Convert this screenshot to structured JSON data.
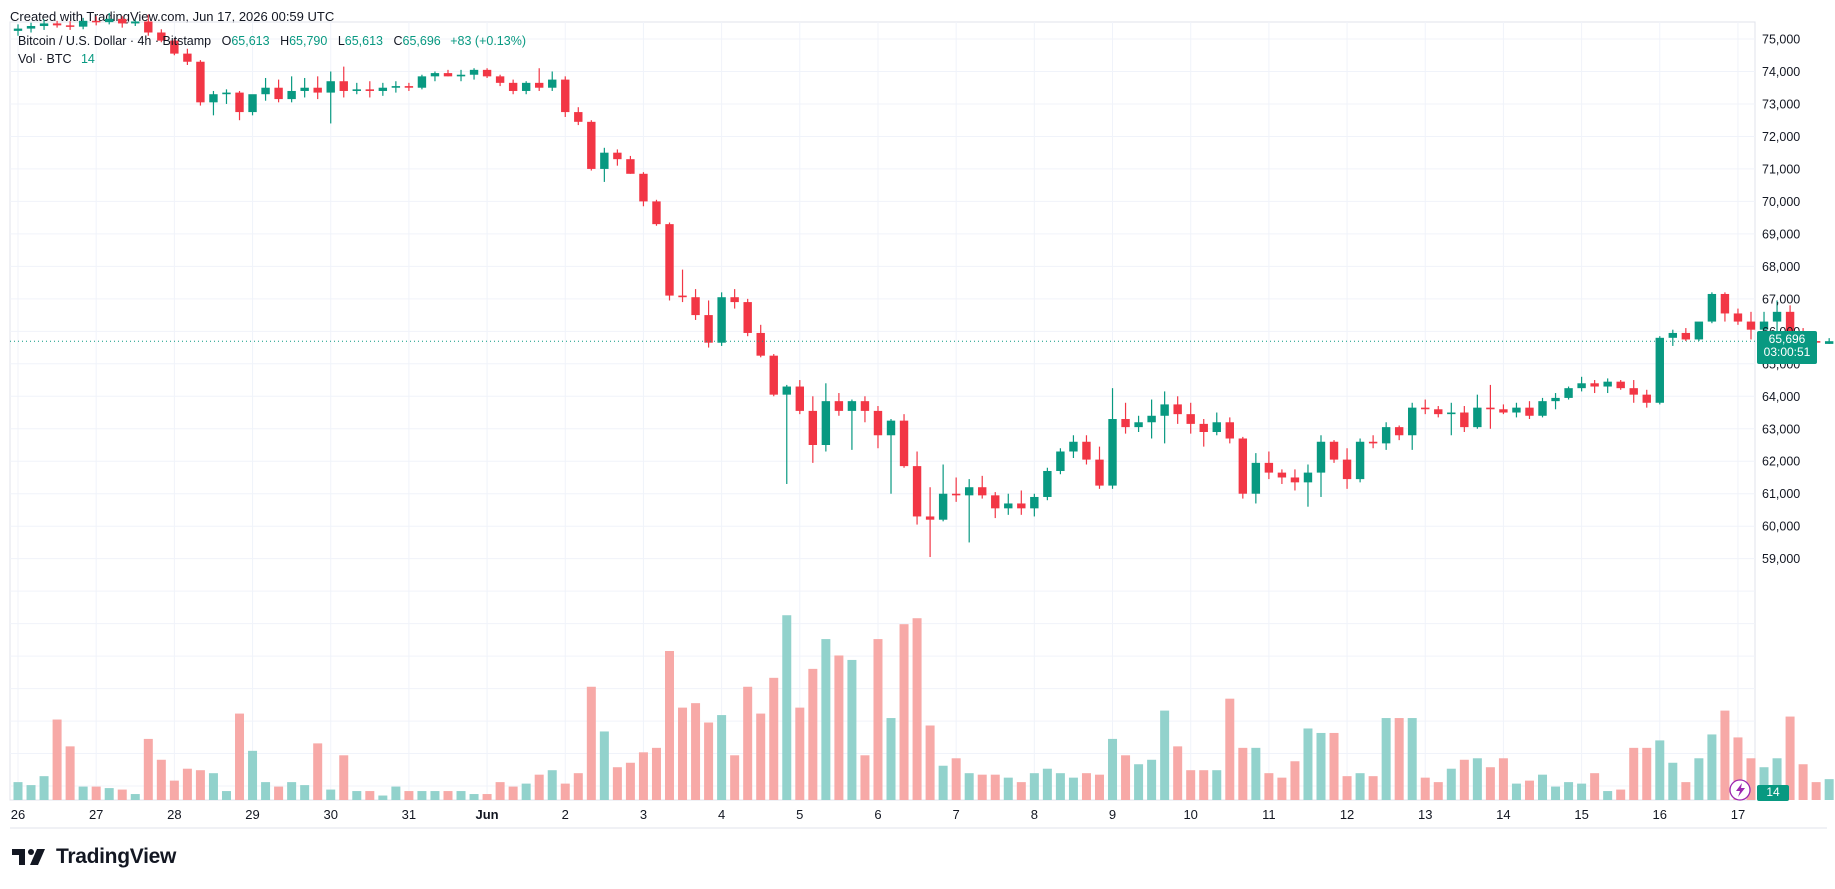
{
  "header": {
    "created_text": "Created with TradingView.com, Jun 17, 2026 00:59 UTC"
  },
  "legend": {
    "symbol": "Bitcoin / U.S. Dollar · 4h · Bitstamp",
    "o_label": "O",
    "o_value": "65,613",
    "h_label": "H",
    "h_value": "65,790",
    "l_label": "L",
    "l_value": "65,613",
    "c_label": "C",
    "c_value": "65,696",
    "change": "+83 (+0.13%)",
    "vol_label": "Vol · BTC",
    "vol_value": "14"
  },
  "price_tag": {
    "price": "65,696",
    "countdown": "03:00:51"
  },
  "volume_tag": "14",
  "brand": "TradingView",
  "colors": {
    "up": "#089981",
    "down": "#f23645",
    "up_vol": "#92d2cc",
    "down_vol": "#f7a9a7",
    "grid": "#f0f3fa",
    "text": "#131722"
  },
  "chart_data": {
    "type": "candlestick",
    "title": "Bitcoin / U.S. Dollar · 4h · Bitstamp",
    "interval": "4h",
    "y_axis": {
      "side": "right",
      "range": [
        58500,
        75600
      ],
      "ticks": [
        59000,
        60000,
        61000,
        62000,
        63000,
        64000,
        65000,
        66000,
        67000,
        68000,
        69000,
        70000,
        71000,
        72000,
        73000,
        74000,
        75000
      ],
      "tick_labels": [
        "59,000",
        "60,000",
        "61,000",
        "62,000",
        "63,000",
        "64,000",
        "65,000",
        "66,000",
        "67,000",
        "68,000",
        "69,000",
        "70,000",
        "71,000",
        "72,000",
        "73,000",
        "74,000",
        "75,000"
      ]
    },
    "x_axis": {
      "labels": [
        "26",
        "27",
        "28",
        "29",
        "30",
        "31",
        "Jun",
        "2",
        "3",
        "4",
        "5",
        "6",
        "7",
        "8",
        "9",
        "10",
        "11",
        "12",
        "13",
        "14",
        "15",
        "16",
        "17"
      ],
      "label_bar_index": [
        0,
        6,
        12,
        18,
        24,
        30,
        36,
        42,
        48,
        54,
        60,
        66,
        72,
        78,
        84,
        90,
        96,
        102,
        108,
        114,
        120,
        126,
        132
      ]
    },
    "last_price": 65696,
    "grid": true,
    "volume_overlay": true,
    "candles": [
      {
        "o": 75250,
        "h": 75450,
        "l": 75100,
        "c": 75320,
        "v": 12
      },
      {
        "o": 75320,
        "h": 75500,
        "l": 75200,
        "c": 75400,
        "v": 10
      },
      {
        "o": 75400,
        "h": 75600,
        "l": 75280,
        "c": 75480,
        "v": 16
      },
      {
        "o": 75480,
        "h": 75560,
        "l": 75350,
        "c": 75420,
        "v": 54
      },
      {
        "o": 75420,
        "h": 75550,
        "l": 75280,
        "c": 75380,
        "v": 36
      },
      {
        "o": 75380,
        "h": 75650,
        "l": 75300,
        "c": 75560,
        "v": 9
      },
      {
        "o": 75560,
        "h": 75700,
        "l": 75420,
        "c": 75520,
        "v": 9
      },
      {
        "o": 75520,
        "h": 75800,
        "l": 75450,
        "c": 75620,
        "v": 8
      },
      {
        "o": 75620,
        "h": 75700,
        "l": 75350,
        "c": 75480,
        "v": 7
      },
      {
        "o": 75480,
        "h": 75600,
        "l": 75400,
        "c": 75540,
        "v": 4
      },
      {
        "o": 75540,
        "h": 75750,
        "l": 75100,
        "c": 75200,
        "v": 41
      },
      {
        "o": 75200,
        "h": 75300,
        "l": 74900,
        "c": 74950,
        "v": 27
      },
      {
        "o": 74950,
        "h": 75000,
        "l": 74500,
        "c": 74550,
        "v": 13
      },
      {
        "o": 74550,
        "h": 74700,
        "l": 74200,
        "c": 74300,
        "v": 21
      },
      {
        "o": 74300,
        "h": 74350,
        "l": 72950,
        "c": 73050,
        "v": 20
      },
      {
        "o": 73050,
        "h": 73400,
        "l": 72650,
        "c": 73300,
        "v": 18
      },
      {
        "o": 73300,
        "h": 73450,
        "l": 73000,
        "c": 73350,
        "v": 6
      },
      {
        "o": 73350,
        "h": 73400,
        "l": 72500,
        "c": 72750,
        "v": 58
      },
      {
        "o": 72750,
        "h": 73200,
        "l": 72650,
        "c": 73300,
        "v": 33
      },
      {
        "o": 73300,
        "h": 73800,
        "l": 73100,
        "c": 73500,
        "v": 12
      },
      {
        "o": 73500,
        "h": 73750,
        "l": 73050,
        "c": 73150,
        "v": 9
      },
      {
        "o": 73150,
        "h": 73850,
        "l": 73050,
        "c": 73400,
        "v": 12
      },
      {
        "o": 73400,
        "h": 73800,
        "l": 73200,
        "c": 73500,
        "v": 10
      },
      {
        "o": 73500,
        "h": 73850,
        "l": 73150,
        "c": 73350,
        "v": 38
      },
      {
        "o": 73350,
        "h": 74000,
        "l": 72400,
        "c": 73700,
        "v": 7
      },
      {
        "o": 73700,
        "h": 74150,
        "l": 73200,
        "c": 73400,
        "v": 30
      },
      {
        "o": 73400,
        "h": 73650,
        "l": 73300,
        "c": 73450,
        "v": 6
      },
      {
        "o": 73450,
        "h": 73700,
        "l": 73200,
        "c": 73400,
        "v": 6
      },
      {
        "o": 73400,
        "h": 73650,
        "l": 73250,
        "c": 73500,
        "v": 3
      },
      {
        "o": 73500,
        "h": 73700,
        "l": 73350,
        "c": 73550,
        "v": 9
      },
      {
        "o": 73550,
        "h": 73650,
        "l": 73400,
        "c": 73500,
        "v": 6
      },
      {
        "o": 73500,
        "h": 73900,
        "l": 73450,
        "c": 73850,
        "v": 6
      },
      {
        "o": 73850,
        "h": 74000,
        "l": 73700,
        "c": 73950,
        "v": 6
      },
      {
        "o": 73950,
        "h": 74050,
        "l": 73850,
        "c": 73850,
        "v": 6
      },
      {
        "o": 73850,
        "h": 74050,
        "l": 73700,
        "c": 73900,
        "v": 6
      },
      {
        "o": 73900,
        "h": 74100,
        "l": 73750,
        "c": 74050,
        "v": 4
      },
      {
        "o": 74050,
        "h": 74100,
        "l": 73800,
        "c": 73850,
        "v": 4
      },
      {
        "o": 73850,
        "h": 73900,
        "l": 73550,
        "c": 73650,
        "v": 12
      },
      {
        "o": 73650,
        "h": 73750,
        "l": 73300,
        "c": 73400,
        "v": 9
      },
      {
        "o": 73400,
        "h": 73700,
        "l": 73300,
        "c": 73650,
        "v": 11
      },
      {
        "o": 73650,
        "h": 74100,
        "l": 73400,
        "c": 73500,
        "v": 17
      },
      {
        "o": 73500,
        "h": 74000,
        "l": 73400,
        "c": 73750,
        "v": 20
      },
      {
        "o": 73750,
        "h": 73850,
        "l": 72600,
        "c": 72750,
        "v": 11
      },
      {
        "o": 72750,
        "h": 72900,
        "l": 72350,
        "c": 72450,
        "v": 18
      },
      {
        "o": 72450,
        "h": 72500,
        "l": 70950,
        "c": 71000,
        "v": 76
      },
      {
        "o": 71000,
        "h": 71650,
        "l": 70600,
        "c": 71500,
        "v": 46
      },
      {
        "o": 71500,
        "h": 71600,
        "l": 71100,
        "c": 71300,
        "v": 22
      },
      {
        "o": 71300,
        "h": 71400,
        "l": 70850,
        "c": 70850,
        "v": 25
      },
      {
        "o": 70850,
        "h": 70900,
        "l": 69850,
        "c": 70000,
        "v": 32
      },
      {
        "o": 70000,
        "h": 70050,
        "l": 69250,
        "c": 69300,
        "v": 35
      },
      {
        "o": 69300,
        "h": 69350,
        "l": 66950,
        "c": 67100,
        "v": 100
      },
      {
        "o": 67100,
        "h": 67900,
        "l": 66900,
        "c": 67050,
        "v": 62
      },
      {
        "o": 67050,
        "h": 67300,
        "l": 66350,
        "c": 66500,
        "v": 65
      },
      {
        "o": 66500,
        "h": 66950,
        "l": 65500,
        "c": 65650,
        "v": 52
      },
      {
        "o": 65650,
        "h": 67200,
        "l": 65550,
        "c": 67050,
        "v": 57
      },
      {
        "o": 67050,
        "h": 67300,
        "l": 66700,
        "c": 66900,
        "v": 30
      },
      {
        "o": 66900,
        "h": 67000,
        "l": 65850,
        "c": 65950,
        "v": 76
      },
      {
        "o": 65950,
        "h": 66200,
        "l": 65200,
        "c": 65250,
        "v": 58
      },
      {
        "o": 65250,
        "h": 65300,
        "l": 64000,
        "c": 64050,
        "v": 82
      },
      {
        "o": 64050,
        "h": 64350,
        "l": 61300,
        "c": 64300,
        "v": 124
      },
      {
        "o": 64300,
        "h": 64500,
        "l": 63450,
        "c": 63550,
        "v": 62
      },
      {
        "o": 63550,
        "h": 64000,
        "l": 61950,
        "c": 62500,
        "v": 88
      },
      {
        "o": 62500,
        "h": 64400,
        "l": 62300,
        "c": 63850,
        "v": 108
      },
      {
        "o": 63850,
        "h": 64100,
        "l": 63400,
        "c": 63550,
        "v": 97
      },
      {
        "o": 63550,
        "h": 63900,
        "l": 62350,
        "c": 63850,
        "v": 94
      },
      {
        "o": 63850,
        "h": 64000,
        "l": 63200,
        "c": 63550,
        "v": 30
      },
      {
        "o": 63550,
        "h": 63700,
        "l": 62400,
        "c": 62800,
        "v": 108
      },
      {
        "o": 62800,
        "h": 63300,
        "l": 61000,
        "c": 63250,
        "v": 55
      },
      {
        "o": 63250,
        "h": 63450,
        "l": 61800,
        "c": 61850,
        "v": 118
      },
      {
        "o": 61850,
        "h": 62300,
        "l": 60050,
        "c": 60300,
        "v": 122
      },
      {
        "o": 60300,
        "h": 61200,
        "l": 59050,
        "c": 60200,
        "v": 50
      },
      {
        "o": 60200,
        "h": 61900,
        "l": 60150,
        "c": 61000,
        "v": 23
      },
      {
        "o": 61000,
        "h": 61500,
        "l": 60750,
        "c": 60950,
        "v": 28
      },
      {
        "o": 60950,
        "h": 61450,
        "l": 59500,
        "c": 61200,
        "v": 18
      },
      {
        "o": 61200,
        "h": 61550,
        "l": 60850,
        "c": 60950,
        "v": 17
      },
      {
        "o": 60950,
        "h": 61050,
        "l": 60250,
        "c": 60550,
        "v": 17
      },
      {
        "o": 60550,
        "h": 61000,
        "l": 60350,
        "c": 60700,
        "v": 15
      },
      {
        "o": 60700,
        "h": 61100,
        "l": 60350,
        "c": 60550,
        "v": 12
      },
      {
        "o": 60550,
        "h": 61000,
        "l": 60300,
        "c": 60900,
        "v": 18
      },
      {
        "o": 60900,
        "h": 61800,
        "l": 60800,
        "c": 61700,
        "v": 21
      },
      {
        "o": 61700,
        "h": 62400,
        "l": 61600,
        "c": 62300,
        "v": 18
      },
      {
        "o": 62300,
        "h": 62800,
        "l": 62100,
        "c": 62600,
        "v": 15
      },
      {
        "o": 62600,
        "h": 62800,
        "l": 61900,
        "c": 62050,
        "v": 18
      },
      {
        "o": 62050,
        "h": 62450,
        "l": 61150,
        "c": 61250,
        "v": 17
      },
      {
        "o": 61250,
        "h": 64250,
        "l": 61150,
        "c": 63300,
        "v": 41
      },
      {
        "o": 63300,
        "h": 63800,
        "l": 62850,
        "c": 63050,
        "v": 30
      },
      {
        "o": 63050,
        "h": 63400,
        "l": 62900,
        "c": 63200,
        "v": 24
      },
      {
        "o": 63200,
        "h": 63900,
        "l": 62700,
        "c": 63400,
        "v": 27
      },
      {
        "o": 63400,
        "h": 64150,
        "l": 62550,
        "c": 63750,
        "v": 60
      },
      {
        "o": 63750,
        "h": 64000,
        "l": 63150,
        "c": 63450,
        "v": 36
      },
      {
        "o": 63450,
        "h": 63800,
        "l": 62850,
        "c": 63150,
        "v": 20
      },
      {
        "o": 63150,
        "h": 63300,
        "l": 62450,
        "c": 62900,
        "v": 20
      },
      {
        "o": 62900,
        "h": 63500,
        "l": 62800,
        "c": 63200,
        "v": 20
      },
      {
        "o": 63200,
        "h": 63350,
        "l": 62550,
        "c": 62700,
        "v": 68
      },
      {
        "o": 62700,
        "h": 62750,
        "l": 60850,
        "c": 61000,
        "v": 35
      },
      {
        "o": 61000,
        "h": 62250,
        "l": 60700,
        "c": 61950,
        "v": 35
      },
      {
        "o": 61950,
        "h": 62300,
        "l": 61450,
        "c": 61650,
        "v": 18
      },
      {
        "o": 61650,
        "h": 61750,
        "l": 61300,
        "c": 61500,
        "v": 15
      },
      {
        "o": 61500,
        "h": 61750,
        "l": 61100,
        "c": 61350,
        "v": 26
      },
      {
        "o": 61350,
        "h": 61900,
        "l": 60600,
        "c": 61650,
        "v": 48
      },
      {
        "o": 61650,
        "h": 62800,
        "l": 60900,
        "c": 62600,
        "v": 45
      },
      {
        "o": 62600,
        "h": 62650,
        "l": 61950,
        "c": 62050,
        "v": 45
      },
      {
        "o": 62050,
        "h": 62400,
        "l": 61150,
        "c": 61450,
        "v": 16
      },
      {
        "o": 61450,
        "h": 62700,
        "l": 61350,
        "c": 62600,
        "v": 18
      },
      {
        "o": 62600,
        "h": 62800,
        "l": 62400,
        "c": 62550,
        "v": 16
      },
      {
        "o": 62550,
        "h": 63200,
        "l": 62350,
        "c": 63050,
        "v": 55
      },
      {
        "o": 63050,
        "h": 63100,
        "l": 62650,
        "c": 62800,
        "v": 55
      },
      {
        "o": 62800,
        "h": 63800,
        "l": 62350,
        "c": 63650,
        "v": 55
      },
      {
        "o": 63650,
        "h": 63900,
        "l": 63450,
        "c": 63600,
        "v": 15
      },
      {
        "o": 63600,
        "h": 63700,
        "l": 63350,
        "c": 63450,
        "v": 12
      },
      {
        "o": 63450,
        "h": 63800,
        "l": 62800,
        "c": 63500,
        "v": 21
      },
      {
        "o": 63500,
        "h": 63700,
        "l": 62900,
        "c": 63050,
        "v": 27
      },
      {
        "o": 63050,
        "h": 64050,
        "l": 63000,
        "c": 63650,
        "v": 28
      },
      {
        "o": 63650,
        "h": 64350,
        "l": 63000,
        "c": 63600,
        "v": 22
      },
      {
        "o": 63600,
        "h": 63750,
        "l": 63450,
        "c": 63500,
        "v": 28
      },
      {
        "o": 63500,
        "h": 63800,
        "l": 63350,
        "c": 63650,
        "v": 11
      },
      {
        "o": 63650,
        "h": 63850,
        "l": 63300,
        "c": 63400,
        "v": 13
      },
      {
        "o": 63400,
        "h": 63950,
        "l": 63350,
        "c": 63850,
        "v": 17
      },
      {
        "o": 63850,
        "h": 64100,
        "l": 63600,
        "c": 63950,
        "v": 9
      },
      {
        "o": 63950,
        "h": 64300,
        "l": 63900,
        "c": 64250,
        "v": 12
      },
      {
        "o": 64250,
        "h": 64600,
        "l": 64150,
        "c": 64400,
        "v": 11
      },
      {
        "o": 64400,
        "h": 64500,
        "l": 64100,
        "c": 64300,
        "v": 18
      },
      {
        "o": 64300,
        "h": 64550,
        "l": 64100,
        "c": 64450,
        "v": 6
      },
      {
        "o": 64450,
        "h": 64500,
        "l": 64200,
        "c": 64250,
        "v": 7
      },
      {
        "o": 64250,
        "h": 64500,
        "l": 63800,
        "c": 64050,
        "v": 35
      },
      {
        "o": 64050,
        "h": 64200,
        "l": 63650,
        "c": 63800,
        "v": 35
      },
      {
        "o": 63800,
        "h": 65850,
        "l": 63750,
        "c": 65800,
        "v": 40
      },
      {
        "o": 65800,
        "h": 66050,
        "l": 65550,
        "c": 65950,
        "v": 25
      },
      {
        "o": 65950,
        "h": 66100,
        "l": 65700,
        "c": 65750,
        "v": 12
      },
      {
        "o": 65750,
        "h": 66250,
        "l": 65700,
        "c": 66300,
        "v": 28
      },
      {
        "o": 66300,
        "h": 67200,
        "l": 66250,
        "c": 67150,
        "v": 44
      },
      {
        "o": 67150,
        "h": 67200,
        "l": 66300,
        "c": 66550,
        "v": 60
      },
      {
        "o": 66550,
        "h": 66700,
        "l": 66200,
        "c": 66300,
        "v": 42
      },
      {
        "o": 66300,
        "h": 66600,
        "l": 65750,
        "c": 66050,
        "v": 28
      },
      {
        "o": 66050,
        "h": 66600,
        "l": 65800,
        "c": 66300,
        "v": 22
      },
      {
        "o": 66300,
        "h": 66950,
        "l": 66000,
        "c": 66600,
        "v": 28
      },
      {
        "o": 66600,
        "h": 66800,
        "l": 65350,
        "c": 65800,
        "v": 56
      },
      {
        "o": 65800,
        "h": 66100,
        "l": 65600,
        "c": 65700,
        "v": 24
      },
      {
        "o": 65700,
        "h": 65850,
        "l": 65500,
        "c": 65650,
        "v": 12
      },
      {
        "o": 65613,
        "h": 65790,
        "l": 65613,
        "c": 65696,
        "v": 14
      }
    ]
  }
}
